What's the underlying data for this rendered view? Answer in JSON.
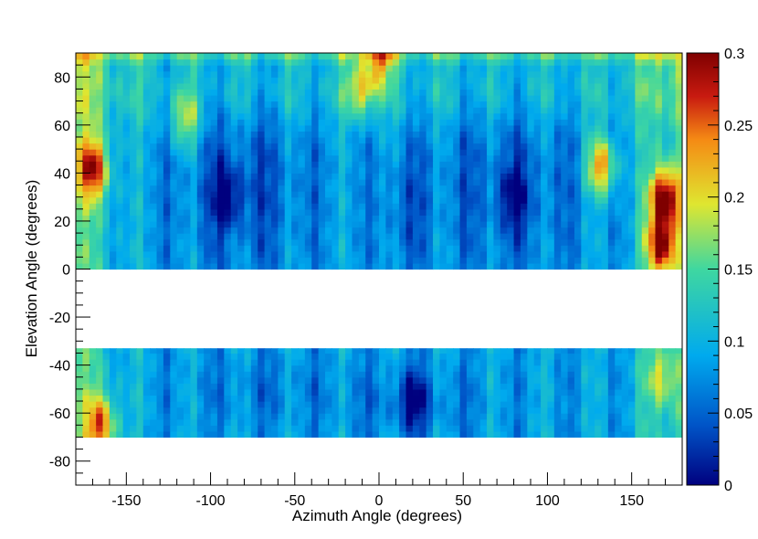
{
  "chart_data": {
    "type": "heatmap",
    "xlabel": "Azimuth Angle (degrees)",
    "ylabel": "Elevation Angle (degrees)",
    "xlim": [
      -180,
      180
    ],
    "ylim": [
      -90,
      90
    ],
    "xticks": [
      -150,
      -100,
      -50,
      0,
      50,
      100,
      150
    ],
    "yticks": [
      -80,
      -60,
      -40,
      -20,
      0,
      20,
      40,
      60,
      80
    ],
    "colorbar": {
      "range": [
        0,
        0.3
      ],
      "ticks": [
        0,
        0.05,
        0.1,
        0.15,
        0.2,
        0.25,
        0.3
      ],
      "tick_labels": [
        "0",
        "0.05",
        "0.1",
        "0.15",
        "0.2",
        "0.25",
        "0.3"
      ],
      "colormap": "rainbow",
      "colors": [
        "#00007f",
        "#0055c8",
        "#00aaee",
        "#3fd7a0",
        "#dfe630",
        "#f58a14",
        "#c81a10",
        "#7f0000"
      ]
    },
    "data_regions": [
      {
        "elevation_range": [
          0,
          90
        ],
        "azimuth_range": [
          -180,
          180
        ]
      },
      {
        "elevation_range": [
          -70,
          -33
        ],
        "azimuth_range": [
          -180,
          180
        ]
      }
    ],
    "empty_regions": [
      {
        "elevation_range": [
          -33,
          0
        ],
        "azimuth_range": [
          -180,
          180
        ]
      },
      {
        "elevation_range": [
          -90,
          -70
        ],
        "azimuth_range": [
          -180,
          180
        ]
      }
    ],
    "features": [
      {
        "azimuth": 170,
        "elevation": 30,
        "value": 0.29
      },
      {
        "azimuth": 168,
        "elevation": 10,
        "value": 0.28
      },
      {
        "azimuth": -170,
        "elevation": 42,
        "value": 0.25
      },
      {
        "azimuth": 132,
        "elevation": 43,
        "value": 0.24
      },
      {
        "azimuth": 0,
        "elevation": 89,
        "value": 0.22
      },
      {
        "azimuth": -10,
        "elevation": 75,
        "value": 0.2
      },
      {
        "azimuth": -115,
        "elevation": 62,
        "value": 0.18
      },
      {
        "azimuth": -165,
        "elevation": -65,
        "value": 0.23
      },
      {
        "azimuth": 168,
        "elevation": -45,
        "value": 0.17
      },
      {
        "azimuth": -90,
        "elevation": 30,
        "value": 0.04
      },
      {
        "azimuth": 80,
        "elevation": 30,
        "value": 0.05
      },
      {
        "azimuth": 20,
        "elevation": -55,
        "value": 0.04
      }
    ]
  }
}
